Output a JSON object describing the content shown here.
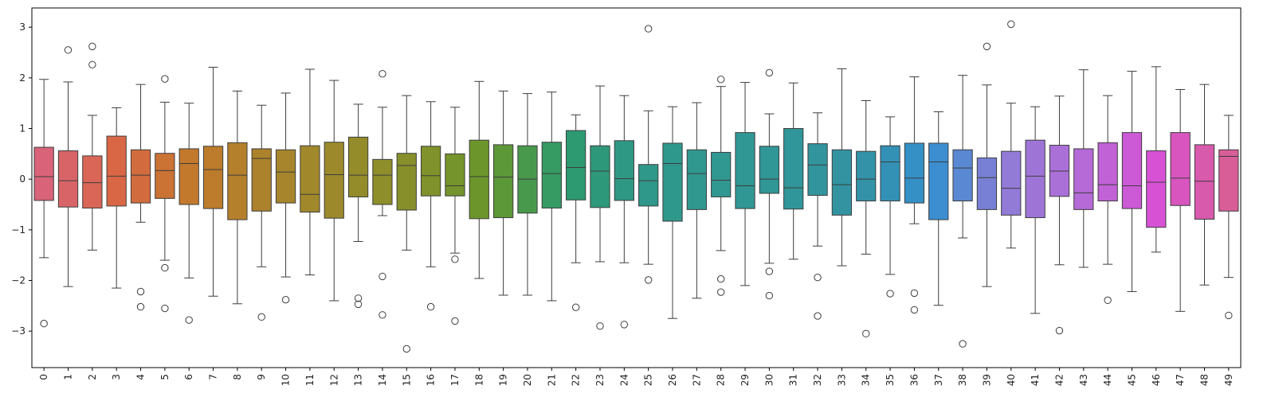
{
  "chart_data": {
    "type": "box",
    "title": "",
    "xlabel": "",
    "ylabel": "",
    "ylim": [
      -3.72,
      3.38
    ],
    "y_ticks": [
      -3,
      -2,
      -1,
      0,
      1,
      2,
      3
    ],
    "y_tick_labels": [
      "−3",
      "−2",
      "−1",
      "0",
      "1",
      "2",
      "3"
    ],
    "categories": [
      "0",
      "1",
      "2",
      "3",
      "4",
      "5",
      "6",
      "7",
      "8",
      "9",
      "10",
      "11",
      "12",
      "13",
      "14",
      "15",
      "16",
      "17",
      "18",
      "19",
      "20",
      "21",
      "22",
      "23",
      "24",
      "25",
      "26",
      "27",
      "28",
      "29",
      "30",
      "31",
      "32",
      "33",
      "34",
      "35",
      "36",
      "37",
      "38",
      "39",
      "40",
      "41",
      "42",
      "43",
      "44",
      "45",
      "46",
      "47",
      "48",
      "49"
    ],
    "boxes": [
      {
        "q1": -0.42,
        "median": 0.05,
        "q3": 0.63,
        "whisker_low": -1.55,
        "whisker_high": 1.97,
        "outliers": [
          -2.85
        ]
      },
      {
        "q1": -0.55,
        "median": -0.03,
        "q3": 0.56,
        "whisker_low": -2.12,
        "whisker_high": 1.92,
        "outliers": [
          2.55
        ]
      },
      {
        "q1": -0.57,
        "median": -0.07,
        "q3": 0.46,
        "whisker_low": -1.4,
        "whisker_high": 1.26,
        "outliers": [
          2.62,
          2.26
        ]
      },
      {
        "q1": -0.53,
        "median": 0.06,
        "q3": 0.85,
        "whisker_low": -2.15,
        "whisker_high": 1.41,
        "outliers": []
      },
      {
        "q1": -0.47,
        "median": 0.08,
        "q3": 0.58,
        "whisker_low": -0.85,
        "whisker_high": 1.87,
        "outliers": [
          -2.22,
          -2.52
        ]
      },
      {
        "q1": -0.38,
        "median": 0.17,
        "q3": 0.51,
        "whisker_low": -1.6,
        "whisker_high": 1.52,
        "outliers": [
          1.98,
          -1.75,
          -2.55
        ]
      },
      {
        "q1": -0.5,
        "median": 0.31,
        "q3": 0.6,
        "whisker_low": -1.95,
        "whisker_high": 1.5,
        "outliers": [
          -2.78
        ]
      },
      {
        "q1": -0.58,
        "median": 0.19,
        "q3": 0.65,
        "whisker_low": -2.31,
        "whisker_high": 2.21,
        "outliers": []
      },
      {
        "q1": -0.8,
        "median": 0.08,
        "q3": 0.72,
        "whisker_low": -2.46,
        "whisker_high": 1.74,
        "outliers": []
      },
      {
        "q1": -0.63,
        "median": 0.41,
        "q3": 0.6,
        "whisker_low": -1.73,
        "whisker_high": 1.46,
        "outliers": [
          -2.72
        ]
      },
      {
        "q1": -0.47,
        "median": 0.14,
        "q3": 0.58,
        "whisker_low": -1.93,
        "whisker_high": 1.7,
        "outliers": [
          -2.38
        ]
      },
      {
        "q1": -0.65,
        "median": -0.3,
        "q3": 0.66,
        "whisker_low": -1.89,
        "whisker_high": 2.17,
        "outliers": []
      },
      {
        "q1": -0.77,
        "median": 0.09,
        "q3": 0.73,
        "whisker_low": -2.4,
        "whisker_high": 1.95,
        "outliers": []
      },
      {
        "q1": -0.35,
        "median": 0.08,
        "q3": 0.83,
        "whisker_low": -1.23,
        "whisker_high": 1.48,
        "outliers": [
          -2.35,
          -2.47
        ]
      },
      {
        "q1": -0.5,
        "median": 0.08,
        "q3": 0.39,
        "whisker_low": -0.72,
        "whisker_high": 1.42,
        "outliers": [
          2.08,
          -1.92,
          -2.68
        ]
      },
      {
        "q1": -0.61,
        "median": 0.27,
        "q3": 0.51,
        "whisker_low": -1.4,
        "whisker_high": 1.65,
        "outliers": [
          -3.35
        ]
      },
      {
        "q1": -0.33,
        "median": 0.07,
        "q3": 0.65,
        "whisker_low": -1.73,
        "whisker_high": 1.53,
        "outliers": [
          -2.52
        ]
      },
      {
        "q1": -0.33,
        "median": -0.13,
        "q3": 0.5,
        "whisker_low": -1.46,
        "whisker_high": 1.42,
        "outliers": [
          -1.58,
          -2.8
        ]
      },
      {
        "q1": -0.78,
        "median": 0.05,
        "q3": 0.77,
        "whisker_low": -1.96,
        "whisker_high": 1.93,
        "outliers": []
      },
      {
        "q1": -0.76,
        "median": 0.04,
        "q3": 0.68,
        "whisker_low": -2.29,
        "whisker_high": 1.74,
        "outliers": []
      },
      {
        "q1": -0.67,
        "median": 0.0,
        "q3": 0.66,
        "whisker_low": -2.29,
        "whisker_high": 1.69,
        "outliers": []
      },
      {
        "q1": -0.57,
        "median": 0.11,
        "q3": 0.73,
        "whisker_low": -2.4,
        "whisker_high": 1.72,
        "outliers": []
      },
      {
        "q1": -0.41,
        "median": 0.23,
        "q3": 0.96,
        "whisker_low": -1.65,
        "whisker_high": 1.27,
        "outliers": [
          -2.53
        ]
      },
      {
        "q1": -0.56,
        "median": 0.16,
        "q3": 0.66,
        "whisker_low": -1.63,
        "whisker_high": 1.84,
        "outliers": [
          -2.9
        ]
      },
      {
        "q1": -0.42,
        "median": 0.01,
        "q3": 0.76,
        "whisker_low": -1.65,
        "whisker_high": 1.65,
        "outliers": [
          -2.87
        ]
      },
      {
        "q1": -0.53,
        "median": -0.03,
        "q3": 0.29,
        "whisker_low": -1.68,
        "whisker_high": 1.35,
        "outliers": [
          2.97,
          -1.99
        ]
      },
      {
        "q1": -0.83,
        "median": 0.31,
        "q3": 0.71,
        "whisker_low": -2.75,
        "whisker_high": 1.43,
        "outliers": []
      },
      {
        "q1": -0.6,
        "median": 0.11,
        "q3": 0.58,
        "whisker_low": -2.35,
        "whisker_high": 1.51,
        "outliers": []
      },
      {
        "q1": -0.35,
        "median": -0.02,
        "q3": 0.53,
        "whisker_low": -1.41,
        "whisker_high": 1.83,
        "outliers": [
          1.97,
          -1.97,
          -2.23
        ]
      },
      {
        "q1": -0.58,
        "median": -0.13,
        "q3": 0.92,
        "whisker_low": -2.1,
        "whisker_high": 1.91,
        "outliers": []
      },
      {
        "q1": -0.28,
        "median": 0.0,
        "q3": 0.65,
        "whisker_low": -1.66,
        "whisker_high": 1.29,
        "outliers": [
          2.1,
          -1.82,
          -2.3
        ]
      },
      {
        "q1": -0.59,
        "median": -0.17,
        "q3": 1.0,
        "whisker_low": -1.58,
        "whisker_high": 1.9,
        "outliers": []
      },
      {
        "q1": -0.32,
        "median": 0.28,
        "q3": 0.7,
        "whisker_low": -1.32,
        "whisker_high": 1.31,
        "outliers": [
          -1.94,
          -2.7
        ]
      },
      {
        "q1": -0.71,
        "median": -0.11,
        "q3": 0.58,
        "whisker_low": -1.71,
        "whisker_high": 2.18,
        "outliers": []
      },
      {
        "q1": -0.43,
        "median": 0.0,
        "q3": 0.55,
        "whisker_low": -1.48,
        "whisker_high": 1.55,
        "outliers": [
          -3.05
        ]
      },
      {
        "q1": -0.43,
        "median": 0.34,
        "q3": 0.66,
        "whisker_low": -1.88,
        "whisker_high": 1.23,
        "outliers": [
          -2.26
        ]
      },
      {
        "q1": -0.47,
        "median": 0.02,
        "q3": 0.71,
        "whisker_low": -0.88,
        "whisker_high": 2.02,
        "outliers": [
          -2.25,
          -2.58
        ]
      },
      {
        "q1": -0.8,
        "median": 0.34,
        "q3": 0.71,
        "whisker_low": -2.49,
        "whisker_high": 1.33,
        "outliers": []
      },
      {
        "q1": -0.43,
        "median": 0.22,
        "q3": 0.58,
        "whisker_low": -1.16,
        "whisker_high": 2.05,
        "outliers": [
          -3.25
        ]
      },
      {
        "q1": -0.6,
        "median": 0.03,
        "q3": 0.42,
        "whisker_low": -2.12,
        "whisker_high": 1.86,
        "outliers": [
          2.62
        ]
      },
      {
        "q1": -0.71,
        "median": -0.18,
        "q3": 0.55,
        "whisker_low": -1.36,
        "whisker_high": 1.5,
        "outliers": [
          3.06
        ]
      },
      {
        "q1": -0.76,
        "median": 0.06,
        "q3": 0.77,
        "whisker_low": -2.65,
        "whisker_high": 1.43,
        "outliers": []
      },
      {
        "q1": -0.34,
        "median": 0.16,
        "q3": 0.67,
        "whisker_low": -1.69,
        "whisker_high": 1.64,
        "outliers": [
          -2.99
        ]
      },
      {
        "q1": -0.6,
        "median": -0.27,
        "q3": 0.6,
        "whisker_low": -1.74,
        "whisker_high": 2.16,
        "outliers": []
      },
      {
        "q1": -0.43,
        "median": -0.11,
        "q3": 0.72,
        "whisker_low": -1.68,
        "whisker_high": 1.65,
        "outliers": [
          -2.39
        ]
      },
      {
        "q1": -0.58,
        "median": -0.13,
        "q3": 0.92,
        "whisker_low": -2.22,
        "whisker_high": 2.13,
        "outliers": []
      },
      {
        "q1": -0.95,
        "median": -0.06,
        "q3": 0.56,
        "whisker_low": -1.44,
        "whisker_high": 2.22,
        "outliers": []
      },
      {
        "q1": -0.52,
        "median": 0.02,
        "q3": 0.92,
        "whisker_low": -2.61,
        "whisker_high": 1.77,
        "outliers": []
      },
      {
        "q1": -0.79,
        "median": -0.04,
        "q3": 0.68,
        "whisker_low": -2.09,
        "whisker_high": 1.87,
        "outliers": []
      },
      {
        "q1": -0.63,
        "median": 0.45,
        "q3": 0.58,
        "whisker_low": -1.94,
        "whisker_high": 1.26,
        "outliers": [
          -2.69
        ]
      }
    ],
    "grid": false,
    "legend": "none",
    "palette": "husl",
    "colors": [
      "#f77189",
      "#f7754f",
      "#dd8a31",
      "#c39532",
      "#ae9d31",
      "#97a431",
      "#77ab31",
      "#33b07a",
      "#35ad9c",
      "#36ada4",
      "#38aaac",
      "#3aa6b9",
      "#3ba3ec",
      "#a48cf4",
      "#cc7af4",
      "#f45cf2",
      "#f66bad"
    ]
  }
}
